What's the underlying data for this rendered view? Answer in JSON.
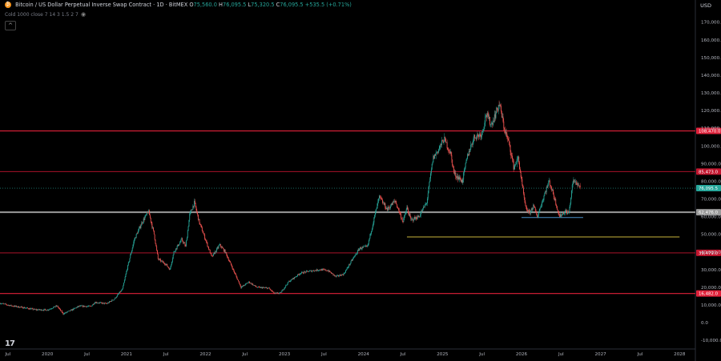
{
  "header": {
    "symbol": "Bitcoin / US Dollar Perpetual Inverse Swap Contract",
    "interval": "1D",
    "exchange": "BitMEX",
    "o_label": "O",
    "o": "75,560.0",
    "h_label": "H",
    "h": "76,095.5",
    "l_label": "L",
    "l": "75,320.5",
    "c_label": "C",
    "c": "76,095.5",
    "change": "+535.5 (+0.71%)",
    "indicator": "Cold 1000 close 7 14 3 1.5 2 7",
    "currency": "USD",
    "logo_glyph": "₿",
    "tv_logo": "17",
    "collapse_glyph": "^"
  },
  "chart_data": {
    "type": "candlestick",
    "y_ticks": [
      -10000,
      0,
      10000,
      20000,
      30000,
      40000,
      50000,
      60000,
      70000,
      80000,
      90000,
      100000,
      110000,
      120000,
      130000,
      140000,
      150000,
      160000,
      170000
    ],
    "y_tick_labels": [
      "-10,000.0",
      "0.0",
      "10,000.0",
      "20,000.0",
      "30,000.0",
      "40,000.0",
      "50,000.0",
      "60,000.0",
      "70,000.0",
      "80,000.0",
      "90,000.0",
      "100,000.0",
      "110,000.0",
      "120,000.0",
      "130,000.0",
      "140,000.0",
      "150,000.0",
      "160,000.0",
      "170,000.0"
    ],
    "ylim": [
      -14000,
      178000
    ],
    "x_ticks": [
      "Jul",
      "2020",
      "Jul",
      "2021",
      "Jul",
      "2022",
      "Jul",
      "2023",
      "Jul",
      "2024",
      "Jul",
      "2025",
      "Jul",
      "2026",
      "Jul",
      "2027",
      "Jul",
      "2028"
    ],
    "x_range": [
      2019.4,
      2028.2
    ],
    "x_tick_pos": [
      2019.5,
      2020.0,
      2020.5,
      2021.0,
      2021.5,
      2022.0,
      2022.5,
      2023.0,
      2023.5,
      2024.0,
      2024.5,
      2025.0,
      2025.5,
      2026.0,
      2026.5,
      2027.0,
      2027.5,
      2028.0
    ],
    "price_path": [
      [
        2019.4,
        11000
      ],
      [
        2019.55,
        9500
      ],
      [
        2019.7,
        8500
      ],
      [
        2019.85,
        7300
      ],
      [
        2020.0,
        7200
      ],
      [
        2020.12,
        9500
      ],
      [
        2020.2,
        5000
      ],
      [
        2020.3,
        7000
      ],
      [
        2020.4,
        9300
      ],
      [
        2020.55,
        9200
      ],
      [
        2020.6,
        11500
      ],
      [
        2020.75,
        10700
      ],
      [
        2020.85,
        13500
      ],
      [
        2020.95,
        19000
      ],
      [
        2021.0,
        29000
      ],
      [
        2021.1,
        47000
      ],
      [
        2021.2,
        57000
      ],
      [
        2021.28,
        63000
      ],
      [
        2021.35,
        50000
      ],
      [
        2021.4,
        36000
      ],
      [
        2021.5,
        33000
      ],
      [
        2021.55,
        30000
      ],
      [
        2021.6,
        40000
      ],
      [
        2021.7,
        47000
      ],
      [
        2021.75,
        43000
      ],
      [
        2021.8,
        61000
      ],
      [
        2021.86,
        68000
      ],
      [
        2021.92,
        57000
      ],
      [
        2022.0,
        47000
      ],
      [
        2022.08,
        37000
      ],
      [
        2022.18,
        44000
      ],
      [
        2022.25,
        40000
      ],
      [
        2022.35,
        30000
      ],
      [
        2022.45,
        20000
      ],
      [
        2022.55,
        23000
      ],
      [
        2022.65,
        20000
      ],
      [
        2022.8,
        19500
      ],
      [
        2022.87,
        16500
      ],
      [
        2022.95,
        16800
      ],
      [
        2023.05,
        23000
      ],
      [
        2023.2,
        28000
      ],
      [
        2023.3,
        29000
      ],
      [
        2023.45,
        30000
      ],
      [
        2023.55,
        29500
      ],
      [
        2023.65,
        26000
      ],
      [
        2023.75,
        27500
      ],
      [
        2023.85,
        35000
      ],
      [
        2023.95,
        42000
      ],
      [
        2024.05,
        43000
      ],
      [
        2024.15,
        62000
      ],
      [
        2024.2,
        71000
      ],
      [
        2024.3,
        64000
      ],
      [
        2024.4,
        69000
      ],
      [
        2024.5,
        57000
      ],
      [
        2024.55,
        65000
      ],
      [
        2024.6,
        58000
      ],
      [
        2024.7,
        60000
      ],
      [
        2024.8,
        68000
      ],
      [
        2024.88,
        93000
      ],
      [
        2024.95,
        98000
      ],
      [
        2025.02,
        104000
      ],
      [
        2025.1,
        96000
      ],
      [
        2025.15,
        84000
      ],
      [
        2025.25,
        80000
      ],
      [
        2025.32,
        95000
      ],
      [
        2025.4,
        105000
      ],
      [
        2025.5,
        107000
      ],
      [
        2025.55,
        118000
      ],
      [
        2025.62,
        112000
      ],
      [
        2025.72,
        124000
      ],
      [
        2025.78,
        110000
      ],
      [
        2025.85,
        100000
      ],
      [
        2025.9,
        88000
      ],
      [
        2025.96,
        93000
      ],
      [
        2026.0,
        80000
      ],
      [
        2026.05,
        65000
      ],
      [
        2026.1,
        62000
      ],
      [
        2026.15,
        66000
      ],
      [
        2026.2,
        60000
      ],
      [
        2026.3,
        74000
      ],
      [
        2026.35,
        80000
      ],
      [
        2026.42,
        70000
      ],
      [
        2026.48,
        60000
      ],
      [
        2026.55,
        63000
      ],
      [
        2026.6,
        62000
      ],
      [
        2026.65,
        80000
      ],
      [
        2026.7,
        79000
      ],
      [
        2026.75,
        76095.5
      ]
    ],
    "horizontal_levels": [
      {
        "value": 108470,
        "label": "108,470.0",
        "color": "#e0213a",
        "width": 1.1
      },
      {
        "value": 85473,
        "label": "85,473.0",
        "color": "#c3162f",
        "width": 0.9
      },
      {
        "value": 62476,
        "label": "62,476.0",
        "color": "#9a9a9a",
        "width": 2.0
      },
      {
        "value": 39479,
        "label": "39,479.0",
        "color": "#c3162f",
        "width": 0.9
      },
      {
        "value": 16482,
        "label": "16,482.0",
        "color": "#e0213a",
        "width": 1.1
      }
    ],
    "last_price": {
      "value": 76095.5,
      "label": "76,095.5",
      "color": "#26a69a"
    },
    "support_lines": [
      {
        "x0": 2024.55,
        "x1": 2028.0,
        "value": 48500,
        "color": "#c8b43c"
      },
      {
        "x0": 2026.0,
        "x1": 2026.78,
        "value": 59500,
        "color": "#4a90c8"
      }
    ],
    "up_color": "#26a69a",
    "down_color": "#ef5350"
  }
}
